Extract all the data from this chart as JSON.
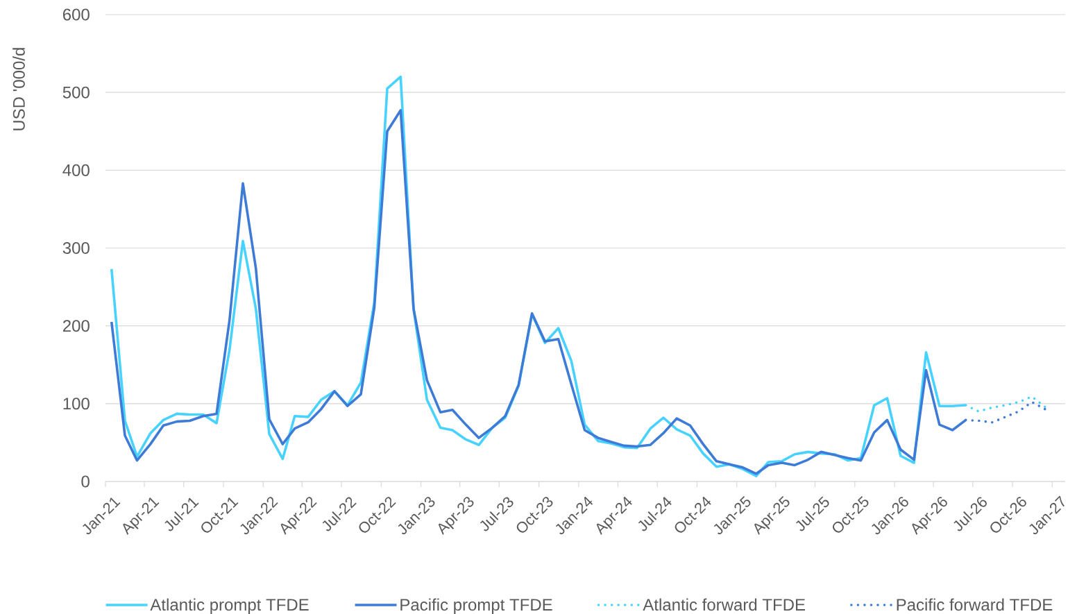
{
  "chart_data": {
    "type": "line",
    "ylabel": "USD '000/d",
    "x": [
      "2021-01-15",
      "2021-02-15",
      "2021-03-15",
      "2021-04-15",
      "2021-05-15",
      "2021-06-15",
      "2021-07-15",
      "2021-08-15",
      "2021-09-15",
      "2021-10-15",
      "2021-11-15",
      "2021-12-15",
      "2022-01-15",
      "2022-02-15",
      "2022-03-15",
      "2022-04-15",
      "2022-05-15",
      "2022-06-15",
      "2022-07-15",
      "2022-08-15",
      "2022-09-15",
      "2022-10-15",
      "2022-11-15",
      "2022-12-15",
      "2023-01-15",
      "2023-02-15",
      "2023-03-15",
      "2023-04-15",
      "2023-05-15",
      "2023-06-15",
      "2023-07-15",
      "2023-08-15",
      "2023-09-15",
      "2023-10-15",
      "2023-11-15",
      "2023-12-15",
      "2024-01-15",
      "2024-02-15",
      "2024-03-15",
      "2024-04-15",
      "2024-05-15",
      "2024-06-15",
      "2024-07-15",
      "2024-08-15",
      "2024-09-15",
      "2024-10-15",
      "2024-11-15",
      "2024-12-15",
      "2025-01-15",
      "2025-02-15",
      "2025-03-15",
      "2025-04-15",
      "2025-05-15",
      "2025-06-15",
      "2025-07-15",
      "2025-08-15",
      "2025-09-15",
      "2025-10-15",
      "2025-11-15",
      "2025-12-15",
      "2026-01-15",
      "2026-02-15",
      "2026-03-15",
      "2026-04-15",
      "2026-05-15",
      "2026-06-15"
    ],
    "xlim": [
      "2021-01-01",
      "2027-01-31"
    ],
    "xticks": [
      {
        "value": "2021-01",
        "label": "Jan-21"
      },
      {
        "value": "2021-04",
        "label": "Apr-21"
      },
      {
        "value": "2021-07",
        "label": "Jul-21"
      },
      {
        "value": "2021-10",
        "label": "Oct-21"
      },
      {
        "value": "2022-01",
        "label": "Jan-22"
      },
      {
        "value": "2022-04",
        "label": "Apr-22"
      },
      {
        "value": "2022-07",
        "label": "Jul-22"
      },
      {
        "value": "2022-10",
        "label": "Oct-22"
      },
      {
        "value": "2023-01",
        "label": "Jan-23"
      },
      {
        "value": "2023-04",
        "label": "Apr-23"
      },
      {
        "value": "2023-07",
        "label": "Jul-23"
      },
      {
        "value": "2023-10",
        "label": "Oct-23"
      },
      {
        "value": "2024-01",
        "label": "Jan-24"
      },
      {
        "value": "2024-04",
        "label": "Apr-24"
      },
      {
        "value": "2024-07",
        "label": "Jul-24"
      },
      {
        "value": "2024-10",
        "label": "Oct-24"
      },
      {
        "value": "2025-01",
        "label": "Jan-25"
      },
      {
        "value": "2025-04",
        "label": "Apr-25"
      },
      {
        "value": "2025-07",
        "label": "Jul-25"
      },
      {
        "value": "2025-10",
        "label": "Oct-25"
      },
      {
        "value": "2026-01",
        "label": "Jan-26"
      },
      {
        "value": "2026-04",
        "label": "Apr-26"
      },
      {
        "value": "2026-07",
        "label": "Jul-26"
      },
      {
        "value": "2026-10",
        "label": "Oct-26"
      },
      {
        "value": "2027-01",
        "label": "Jan-27"
      }
    ],
    "ylim": [
      0,
      600
    ],
    "yticks": [
      0,
      100,
      200,
      300,
      400,
      500,
      600
    ],
    "grid": "y",
    "legend": "bottom",
    "marker": "none",
    "series": [
      {
        "name": "Atlantic prompt TFDE",
        "color": "#48d2ff",
        "line_style": "solid",
        "values": [
          273,
          78,
          32,
          62,
          79,
          87,
          86,
          86,
          75,
          169,
          309,
          222,
          61,
          29,
          84,
          83,
          105,
          116,
          98,
          127,
          230,
          505,
          520,
          221,
          105,
          69,
          66,
          54,
          47,
          69,
          82,
          123,
          215,
          178,
          197,
          155,
          73,
          52,
          49,
          44,
          43,
          68,
          82,
          67,
          59,
          36,
          19,
          22,
          16,
          7,
          25,
          26,
          35,
          38,
          36,
          35,
          27,
          30,
          98,
          107,
          33,
          24,
          166,
          97,
          97,
          98
        ]
      },
      {
        "name": "Pacific prompt TFDE",
        "color": "#3d7bd6",
        "line_style": "solid",
        "values": [
          205,
          59,
          27,
          48,
          72,
          77,
          78,
          84,
          87,
          207,
          383,
          274,
          80,
          48,
          68,
          76,
          93,
          116,
          97,
          112,
          223,
          450,
          477,
          222,
          130,
          89,
          92,
          73,
          56,
          69,
          84,
          124,
          216,
          180,
          183,
          125,
          66,
          56,
          51,
          46,
          45,
          47,
          62,
          81,
          72,
          48,
          26,
          22,
          18,
          10,
          21,
          24,
          21,
          28,
          38,
          34,
          30,
          27,
          63,
          79,
          41,
          28,
          143,
          73,
          66,
          79
        ]
      },
      {
        "name": "Atlantic forward TFDE",
        "color": "#48d2ff",
        "line_style": "dotted",
        "x": [
          "2026-06-15",
          "2026-07-15",
          "2026-08-15",
          "2026-09-15",
          "2026-10-15",
          "2026-11-15",
          "2026-12-15"
        ],
        "values": [
          98,
          90,
          95,
          98,
          102,
          109,
          96
        ]
      },
      {
        "name": "Pacific forward TFDE",
        "color": "#3d7bd6",
        "line_style": "dotted",
        "x": [
          "2026-06-15",
          "2026-07-15",
          "2026-08-15",
          "2026-09-15",
          "2026-10-15",
          "2026-11-15",
          "2026-12-15"
        ],
        "values": [
          79,
          78,
          76,
          83,
          90,
          102,
          93
        ]
      }
    ]
  }
}
